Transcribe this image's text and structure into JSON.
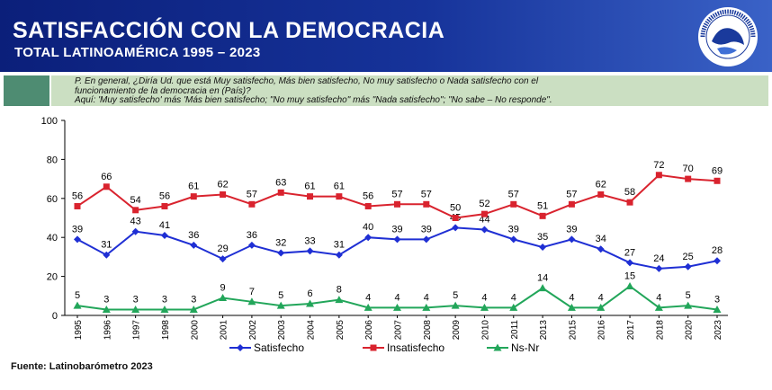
{
  "header": {
    "title": "SATISFACCIÓN CON LA DEMOCRACIA",
    "subtitle": "TOTAL LATINOAMÉRICA 1995 – 2023",
    "logo_text": "LATINOBARÓMETRO · 1995 · 2023",
    "background_color": "#16339a"
  },
  "question": {
    "line1": "P. En general, ¿Diría Ud. que está Muy satisfecho, Más bien satisfecho, No muy satisfecho o Nada satisfecho con el",
    "line2": "funcionamiento de la democracia en (País)?",
    "line3": "Aquí: 'Muy satisfecho' más 'Más bien satisfecho; \"No muy satisfecho\" más \"Nada satisfecho\"; \"No sabe – No responde\"."
  },
  "footer": {
    "source": "Fuente: Latinobarómetro 2023"
  },
  "chart_data": {
    "type": "line",
    "title": "",
    "xlabel": "",
    "ylabel": "",
    "ylim": [
      0,
      100
    ],
    "yticks": [
      0,
      20,
      40,
      60,
      80,
      100
    ],
    "grid": false,
    "legend_position": "bottom",
    "x": [
      "1995",
      "1996",
      "1997",
      "1998",
      "2000",
      "2001",
      "2002",
      "2003",
      "2004",
      "2005",
      "2006",
      "2007",
      "2008",
      "2009",
      "2010",
      "2011",
      "2013",
      "2015",
      "2016",
      "2017",
      "2018",
      "2020",
      "2023"
    ],
    "series": [
      {
        "name": "Satisfecho",
        "color": "#1f2fd4",
        "marker": "diamond",
        "values": [
          39,
          31,
          43,
          41,
          36,
          29,
          36,
          32,
          33,
          31,
          40,
          39,
          39,
          45,
          44,
          39,
          35,
          39,
          34,
          27,
          24,
          25,
          28
        ]
      },
      {
        "name": "Insatisfecho",
        "color": "#d9232e",
        "marker": "square",
        "values": [
          56,
          66,
          54,
          56,
          61,
          62,
          57,
          63,
          61,
          61,
          56,
          57,
          57,
          50,
          52,
          57,
          51,
          57,
          62,
          58,
          72,
          70,
          69
        ]
      },
      {
        "name": "Ns-Nr",
        "color": "#22a65a",
        "marker": "triangle",
        "values": [
          5,
          3,
          3,
          3,
          3,
          9,
          7,
          5,
          6,
          8,
          4,
          4,
          4,
          5,
          4,
          4,
          14,
          4,
          4,
          15,
          4,
          5,
          3
        ]
      }
    ]
  }
}
